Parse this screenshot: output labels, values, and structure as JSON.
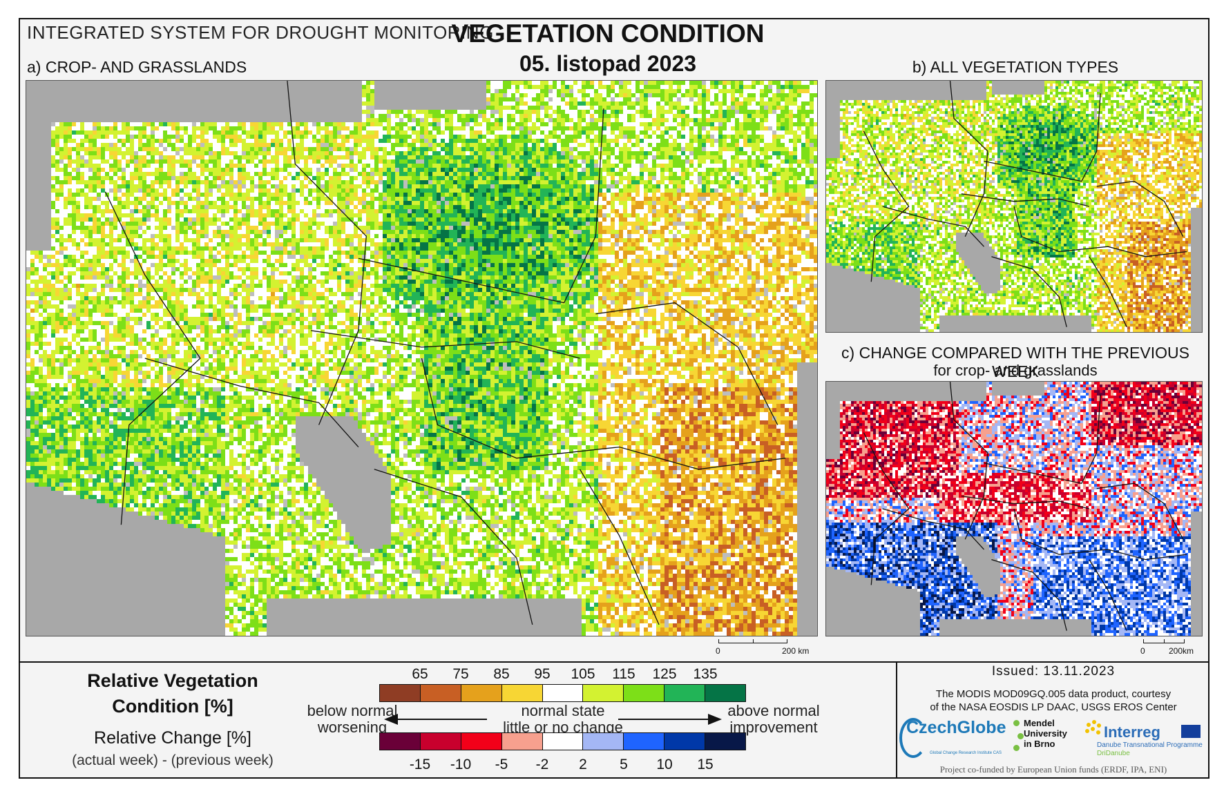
{
  "header": {
    "system_title": "INTEGRATED SYSTEM FOR DROUGHT MONITORING",
    "main_title": "VEGETATION CONDITION",
    "date": "05. listopad 2023"
  },
  "panels": {
    "a_label": "a) CROP- AND GRASSLANDS",
    "b_label": "b) ALL VEGETATION TYPES",
    "c_label": "c) CHANGE COMPARED WITH THE PREVIOUS WEEK",
    "c_sublabel": "for crop- and grasslands"
  },
  "scale_bars": {
    "a": {
      "zero": "0",
      "end": "200 km"
    },
    "c": {
      "zero": "0",
      "end": "200km"
    }
  },
  "legend": {
    "rvc_title_line1": "Relative Vegetation",
    "rvc_title_line2": "Condition [%]",
    "change_title": "Relative Change [%]",
    "change_subtitle": "(actual week) - (previous week)",
    "rvc_ticks": [
      "65",
      "75",
      "85",
      "95",
      "105",
      "115",
      "125",
      "135"
    ],
    "rvc_colors": [
      "#8f3d24",
      "#c85f24",
      "#e5a11c",
      "#f7d634",
      "#ffffff",
      "#d3f231",
      "#7ddf18",
      "#22b457",
      "#057446"
    ],
    "change_ticks": [
      "-15",
      "-10",
      "-5",
      "-2",
      "2",
      "5",
      "10",
      "15"
    ],
    "change_colors": [
      "#6a0038",
      "#c8002d",
      "#f20019",
      "#f7a08e",
      "#ffffff",
      "#a4b7f5",
      "#1f64ff",
      "#0038a8",
      "#081848"
    ],
    "below_line1": "below normal",
    "below_line2": "worsening",
    "normal_line1": "normal state",
    "normal_line2": "little or no change",
    "above_line1": "above normal",
    "above_line2": "improvement"
  },
  "info": {
    "issued": "Issued: 13.11.2023",
    "courtesy_line1": "The MODIS MOD09GQ.005 data product, courtesy",
    "courtesy_line2": "of the NASA EOSDIS LP DAAC, USGS EROS Center",
    "logo_czechglobe": "CzechGlobe",
    "logo_czechglobe_sub": "Global Change Research Institute CAS",
    "logo_mendel_1": "Mendel",
    "logo_mendel_2": "University",
    "logo_mendel_3": "in Brno",
    "logo_interreg": "Interreg",
    "logo_interreg_sub": "Danube Transnational Programme",
    "logo_interreg_sub2": "DriDanube",
    "funded": "Project co-funded by European Union funds (ERDF, IPA, ENI)"
  },
  "colors": {
    "sea_gray": "#a8a8a8",
    "frame": "#111111"
  }
}
